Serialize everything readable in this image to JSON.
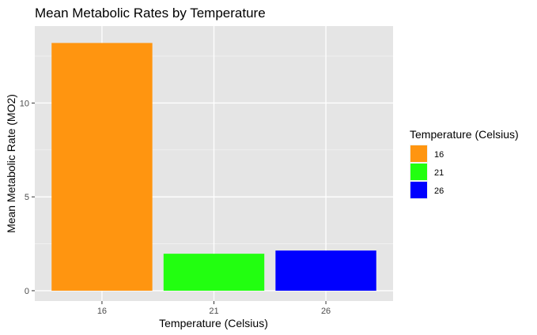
{
  "chart_data": {
    "type": "bar",
    "title": "Mean Metabolic Rates by Temperature",
    "xlabel": "Temperature (Celsius)",
    "ylabel": "Mean Metabolic Rate (MO2)",
    "categories": [
      "16",
      "21",
      "26"
    ],
    "values": [
      13.2,
      1.97,
      2.14
    ],
    "colors": [
      "#FF9510",
      "#22FF10",
      "#0000FF"
    ],
    "ylim": [
      -0.55,
      14.1
    ],
    "yticks": [
      0,
      5,
      10
    ],
    "grid": true,
    "panel_background": "#E5E5E5",
    "legend": {
      "title": "Temperature (Celsius)",
      "position": "right",
      "items": [
        "16",
        "21",
        "26"
      ]
    }
  }
}
